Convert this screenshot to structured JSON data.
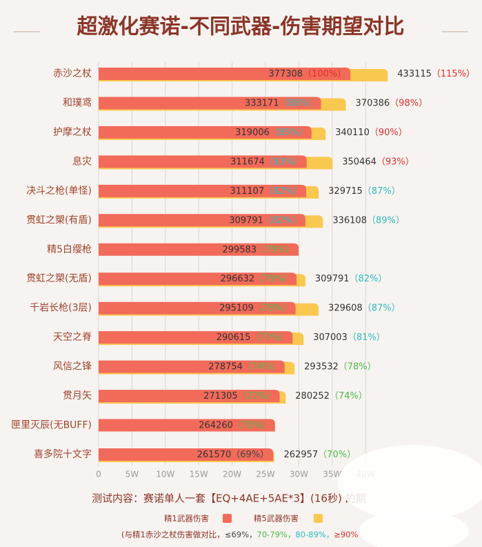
{
  "chart_data": {
    "type": "bar",
    "orientation": "horizontal",
    "overlap": true,
    "title": "超激化赛诺-不同武器-伤害期望对比",
    "categories": [
      "赤沙之杖",
      "和璞鸢",
      "护摩之杖",
      "息灾",
      "决斗之枪(单怪)",
      "贯虹之槊(有盾)",
      "精5白缨枪",
      "贯虹之槊(无盾)",
      "千岩长枪(3层)",
      "天空之脊",
      "风信之锋",
      "贯月矢",
      "匣里灭辰(无BUFF)",
      "喜多院十文字"
    ],
    "series": [
      {
        "name": "精5武器伤害",
        "color": "#f9c84f",
        "values": [
          433115,
          370386,
          340110,
          350464,
          329715,
          336108,
          null,
          309791,
          329608,
          307003,
          293532,
          280252,
          null,
          262957
        ],
        "percents": [
          115,
          98,
          90,
          93,
          87,
          89,
          null,
          82,
          87,
          81,
          78,
          74,
          null,
          70
        ],
        "percent_labels": [
          "（115%）",
          "（98%）",
          "（90%）",
          "（93%）",
          "（87%）",
          "（89%）",
          null,
          "（82%）",
          "（87%）",
          "（81%）",
          "（78%）",
          "（74%）",
          null,
          "（70%）"
        ]
      },
      {
        "name": "精1武器伤害",
        "color": "#f26a5a",
        "values": [
          377308,
          333171,
          319006,
          311674,
          311107,
          309791,
          299583,
          296632,
          295109,
          290615,
          278754,
          271305,
          264260,
          261570
        ],
        "percents": [
          100,
          88,
          85,
          83,
          82,
          82,
          79,
          79,
          78,
          77,
          74,
          72,
          70,
          69
        ],
        "percent_labels": [
          "（100%）",
          "（88%）",
          "（85%）",
          "（83%）",
          "（82%）",
          "（82%）",
          "（79%）",
          "（79%）",
          "（78%）",
          "（77%）",
          "（74%）",
          "（72%）",
          "（70%）",
          "（69%）"
        ]
      }
    ],
    "percent_bands": [
      {
        "max": 69,
        "color": "#444444"
      },
      {
        "max": 79,
        "color": "#4cba4c"
      },
      {
        "max": 89,
        "color": "#2cbcbc"
      },
      {
        "max": 1000,
        "color": "#e0302f"
      }
    ],
    "xlim": [
      0,
      450000
    ],
    "xticks": [
      0,
      {
        "value": 50000,
        "label": "5W"
      },
      {
        "value": 100000,
        "label": "10W"
      },
      {
        "value": 150000,
        "label": "15W"
      },
      {
        "value": 200000,
        "label": "20W"
      },
      {
        "value": 250000,
        "label": "25W"
      },
      {
        "value": 300000,
        "label": "30W"
      },
      {
        "value": 350000,
        "label": "35W"
      },
      {
        "value": 400000,
        "label": "40W"
      }
    ],
    "grid": true,
    "footnote": "测试内容：赛诺单人一套【EQ+4AE+5AE*3】(16秒) 的期",
    "note": [
      "(与精1赤沙之杖伤害做对比，",
      "≤69%，",
      "70-79%，",
      "80-89%，",
      "≥90%"
    ]
  }
}
